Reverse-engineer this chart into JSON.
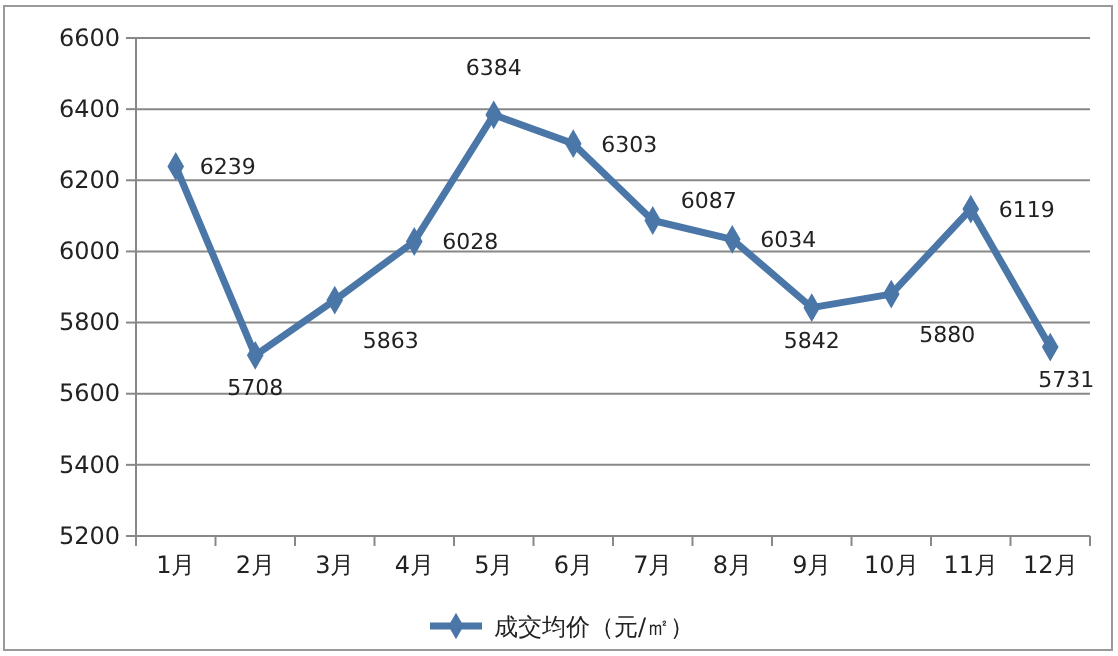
{
  "chart_data": {
    "type": "line",
    "categories": [
      "1月",
      "2月",
      "3月",
      "4月",
      "5月",
      "6月",
      "7月",
      "8月",
      "9月",
      "10月",
      "11月",
      "12月"
    ],
    "series": [
      {
        "name": "成交均价（元/㎡）",
        "color": "#4a76a8",
        "values": [
          6239,
          5708,
          5863,
          6028,
          6384,
          6303,
          6087,
          6034,
          5842,
          5880,
          6119,
          5731
        ]
      }
    ],
    "ylim": [
      5200,
      6600
    ],
    "yticks": [
      5200,
      5400,
      5600,
      5800,
      6000,
      6200,
      6400,
      6600
    ],
    "grid": "y",
    "legend": "bottom",
    "marker": "diamond",
    "line_style": "solid",
    "data_labels": true
  }
}
